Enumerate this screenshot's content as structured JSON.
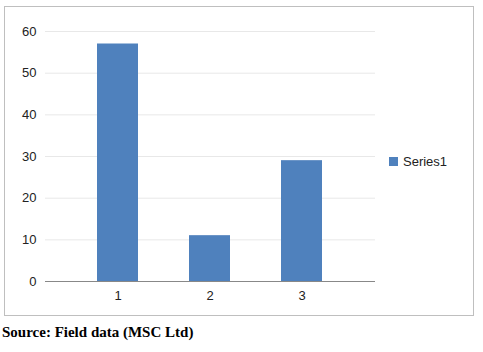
{
  "chart_data": {
    "type": "bar",
    "caption": "Source: Field data (MSC Ltd)",
    "categories": [
      "1",
      "2",
      "3"
    ],
    "series": [
      {
        "name": "Series1",
        "color": "#4f81bd",
        "values": [
          57,
          11,
          29
        ]
      }
    ],
    "ylim": [
      0,
      60
    ],
    "yticks": [
      0,
      10,
      20,
      30,
      40,
      50,
      60
    ],
    "grid": true,
    "legend": "right"
  }
}
